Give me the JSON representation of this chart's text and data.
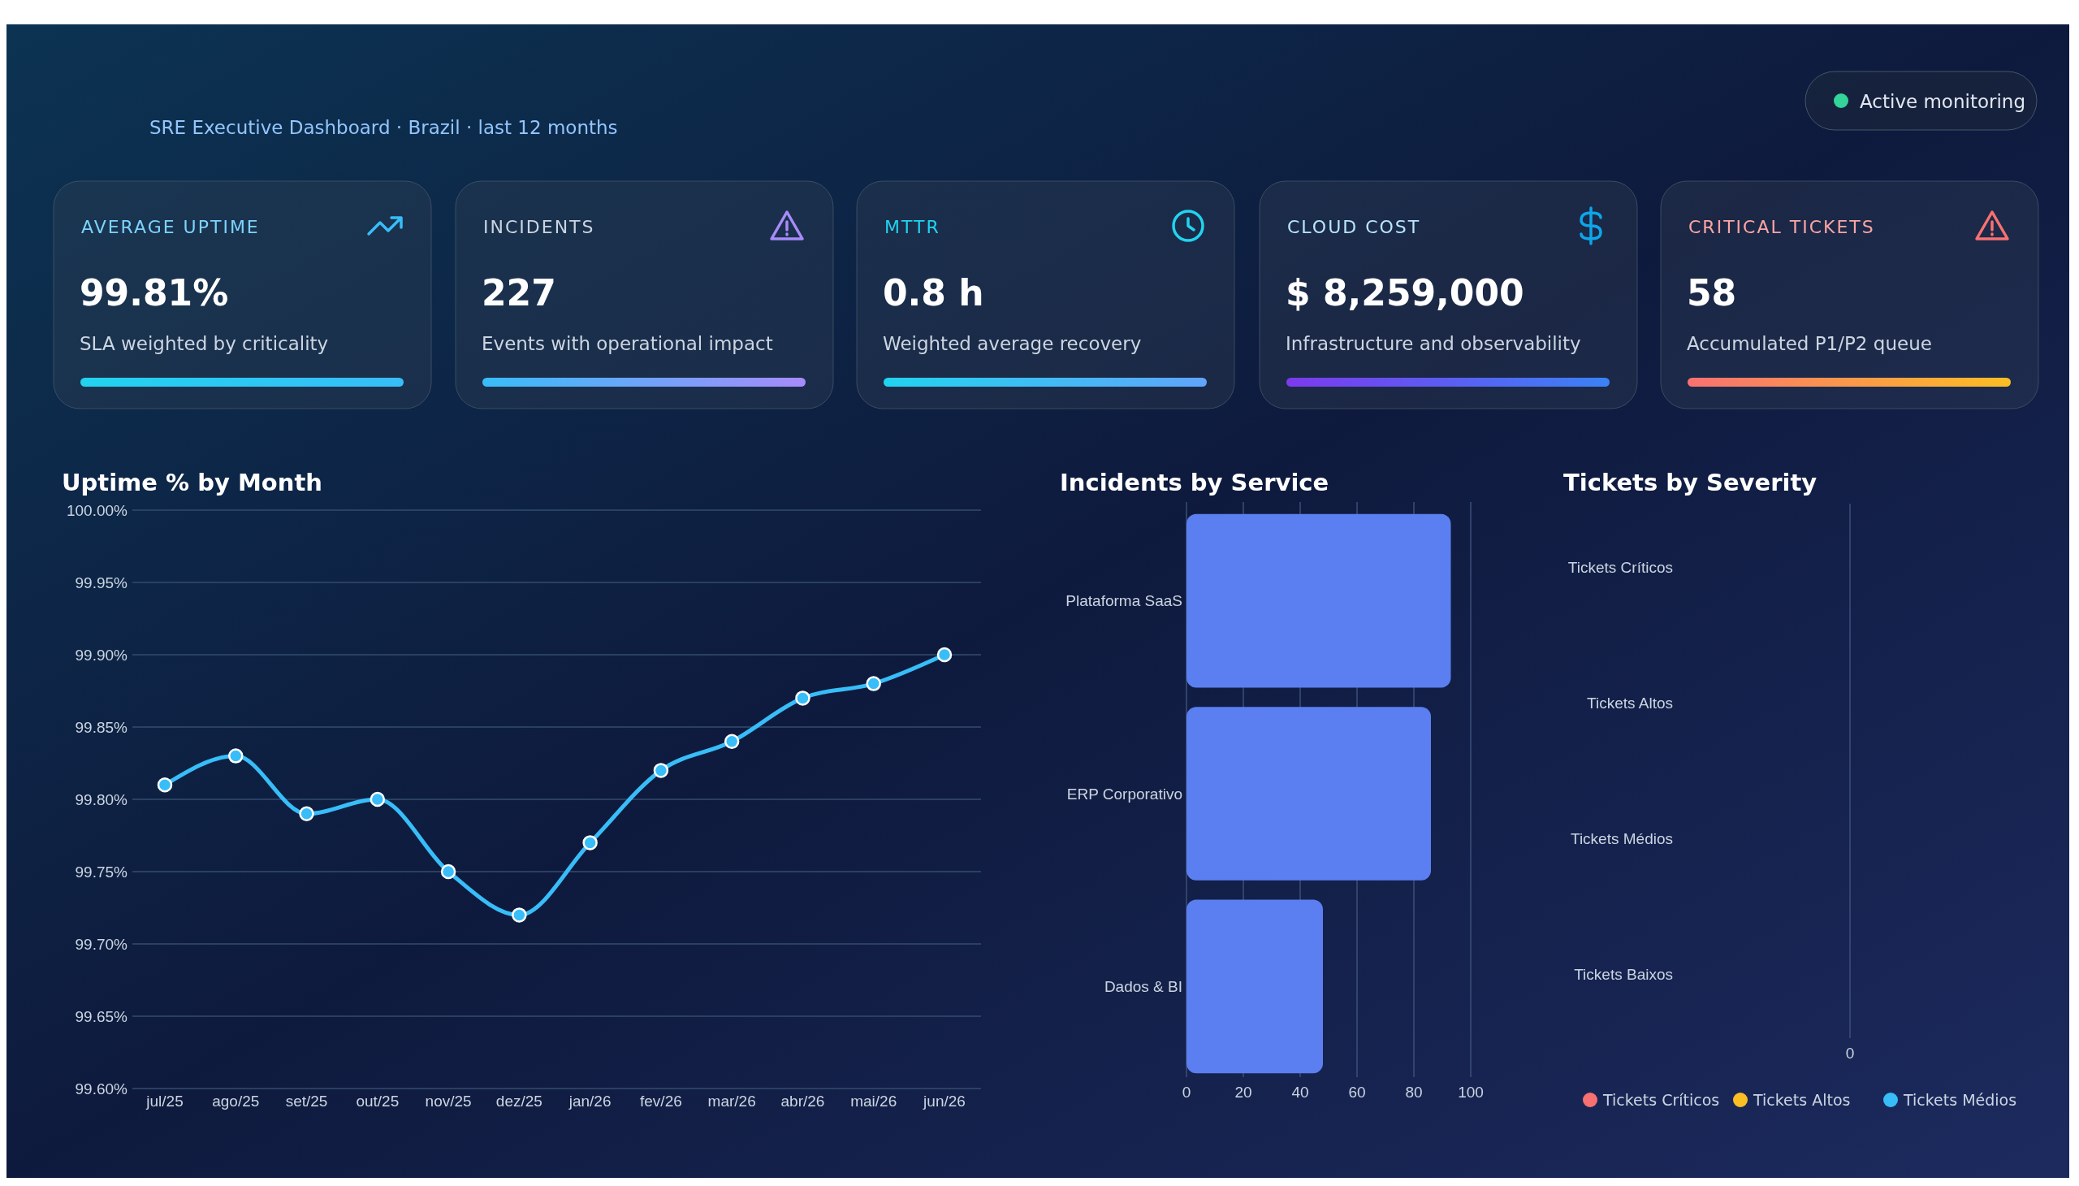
{
  "chart_data": [
    {
      "type": "other",
      "subtitle": "SRE Executive Dashboard · Brazil · last 12 months",
      "annotations": [
        "Active monitoring"
      ]
    },
    {
      "type": "other",
      "title": "AVERAGE UPTIME",
      "annotations": [
        "99.81%",
        "SLA weighted by criticality"
      ]
    },
    {
      "type": "other",
      "title": "INCIDENTS",
      "annotations": [
        "227",
        "Events with operational impact"
      ]
    },
    {
      "type": "other",
      "title": "MTTR",
      "annotations": [
        "0.8 h",
        "Weighted average recovery"
      ]
    },
    {
      "type": "other",
      "title": "CLOUD COST",
      "annotations": [
        "$ 8,259,000",
        "Infrastructure and observability"
      ]
    },
    {
      "type": "other",
      "title": "CRITICAL TICKETS",
      "annotations": [
        "58",
        "Accumulated P1/P2 queue"
      ]
    },
    {
      "type": "line",
      "title": "Uptime % by Month",
      "categories": [
        "jul/25",
        "ago/25",
        "set/25",
        "out/25",
        "nov/25",
        "dez/25",
        "jan/26",
        "fev/26",
        "mar/26",
        "abr/26",
        "mai/26",
        "jun/26"
      ],
      "series": [
        {
          "color": "#38bdf8",
          "values": [
            99.81,
            99.83,
            99.79,
            99.8,
            99.75,
            99.72,
            99.77,
            99.82,
            99.84,
            99.87,
            99.88,
            99.9
          ]
        }
      ],
      "ylim": [
        99.6,
        100
      ],
      "yticks": [
        {
          "value": 99.6,
          "label": "99.60%"
        },
        {
          "value": 99.65,
          "label": "99.65%"
        },
        {
          "value": 99.7,
          "label": "99.70%"
        },
        {
          "value": 99.75,
          "label": "99.75%"
        },
        {
          "value": 99.8,
          "label": "99.80%"
        },
        {
          "value": 99.85,
          "label": "99.85%"
        },
        {
          "value": 99.9,
          "label": "99.90%"
        },
        {
          "value": 99.95,
          "label": "99.95%"
        },
        {
          "value": 100,
          "label": "100.00%"
        }
      ],
      "grid": "y",
      "marker": "circle",
      "line_style": "solid"
    },
    {
      "type": "bar",
      "orientation": "horizontal",
      "title": "Incidents by Service",
      "categories": [
        "Plataforma SaaS",
        "ERP Corporativo",
        "Dados & BI"
      ],
      "series": [
        {
          "color": "#5b7ff0",
          "values": [
            93,
            86,
            48
          ]
        }
      ],
      "xlim": [
        0,
        100
      ],
      "xticks": [
        0,
        20,
        40,
        60,
        80,
        100
      ],
      "grid": "x"
    },
    {
      "type": "other",
      "title": "Tickets by Severity",
      "categories": [
        "Tickets Críticos",
        "Tickets Altos",
        "Tickets Médios",
        "Tickets Baixos"
      ],
      "colors": [
        "#f87171",
        "#fbbf24",
        "#38bdf8"
      ],
      "annotations": [
        "0",
        "Tickets Críticos",
        "Tickets Altos",
        "Tickets Médios"
      ]
    }
  ]
}
